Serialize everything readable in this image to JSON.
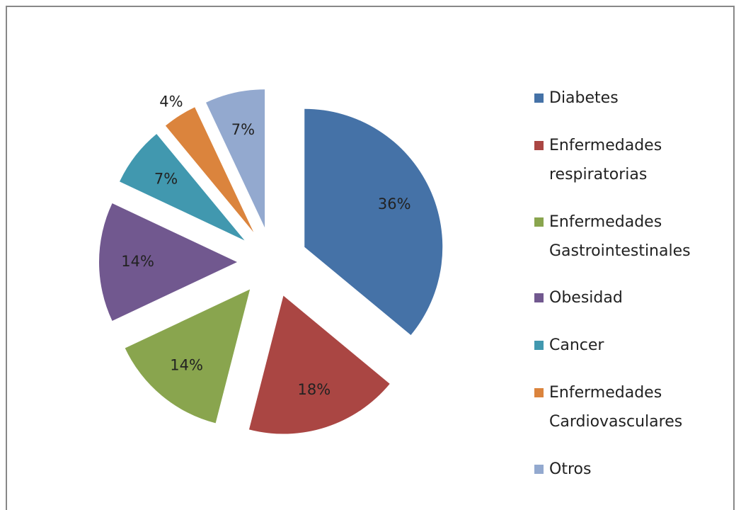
{
  "chart_data": {
    "type": "pie",
    "categories": [
      "Diabetes",
      "Enfermedades respiratorias",
      "Enfermedades Gastrointestinales",
      "Obesidad",
      "Cancer",
      "Enfermedades Cardiovasculares",
      "Otros"
    ],
    "values": [
      36,
      18,
      14,
      14,
      7,
      4,
      7
    ],
    "value_labels": [
      "36%",
      "18%",
      "14%",
      "14%",
      "7%",
      "4%",
      "7%"
    ],
    "colors": [
      "#4572a7",
      "#aa4643",
      "#89a54e",
      "#71588f",
      "#4198af",
      "#db843d",
      "#93a9cf"
    ],
    "legend": "right"
  }
}
